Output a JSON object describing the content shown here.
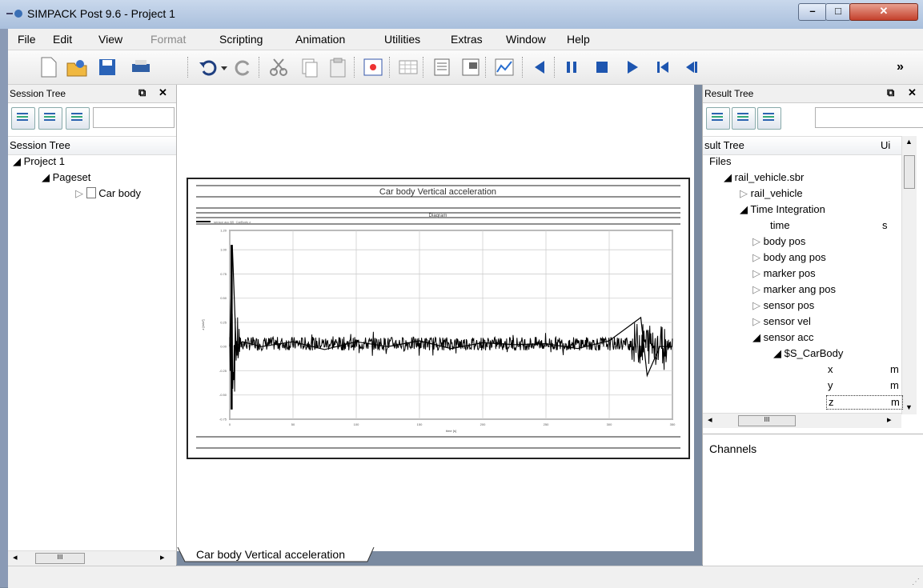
{
  "window": {
    "title": "SIMPACK Post 9.6 - Project 1"
  },
  "menu": [
    "File",
    "Edit",
    "View",
    "Format",
    "Scripting",
    "Animation",
    "Utilities",
    "Extras",
    "Window",
    "Help"
  ],
  "toolbar": {
    "icons": [
      "new-document-icon",
      "open-folder-icon",
      "save-icon",
      "print-icon",
      "undo-icon",
      "undo-dropdown-icon",
      "redo-icon",
      "cut-icon",
      "copy-icon",
      "paste-icon",
      "fit-view-icon",
      "table-icon",
      "report-icon",
      "page-layout-icon",
      "diagram-icon",
      "step-back-icon",
      "pause-icon",
      "stop-icon",
      "play-icon",
      "go-first-icon",
      "previous-frame-icon"
    ],
    "overflow": "»"
  },
  "session_tree": {
    "panel_title": "Session Tree",
    "column_title": "Session Tree",
    "nodes": [
      "Project 1",
      "Pageset",
      "Car body"
    ],
    "scroll_glyph": "III"
  },
  "result_tree": {
    "panel_title": "Result Tree",
    "column_title": "sult Tree",
    "column_unit": "Ui",
    "nodes": [
      "Files",
      "rail_vehicle.sbr",
      "rail_vehicle",
      "Time Integration",
      "time",
      "body pos",
      "body ang pos",
      "marker pos",
      "marker ang pos",
      "sensor pos",
      "sensor vel",
      "sensor acc",
      "$S_CarBody",
      "x",
      "y",
      "z"
    ],
    "units": {
      "time": "s",
      "x": "m",
      "y": "m",
      "z": "m"
    },
    "scroll_glyph": "III"
  },
  "channels": {
    "title": "Channels"
  },
  "tab": {
    "label": "Car body Vertical acceleration"
  },
  "plot": {
    "title": "Car body Vertical acceleration",
    "subtitle": "Diagram",
    "legend": "sensor acc $S_CarBody z",
    "xlabel": "time [s]",
    "ylabel": "z [m/s²]",
    "xticks": [
      "0",
      "50",
      "100",
      "150",
      "200",
      "250",
      "300",
      "350"
    ],
    "yticks": [
      "1.20",
      "1.00",
      "0.75",
      "0.50",
      "0.25",
      "0.00",
      "-0.25",
      "-0.50",
      "-0.75"
    ]
  },
  "chart_data": {
    "type": "line",
    "title": "Car body Vertical acceleration",
    "xlabel": "time [s]",
    "ylabel": "z [m/s²]",
    "xlim": [
      0,
      350
    ],
    "ylim": [
      -0.75,
      1.2
    ],
    "grid": true,
    "series": [
      {
        "name": "sensor acc $S_CarBody z",
        "x": [
          0,
          2,
          5,
          10,
          25,
          50,
          75,
          100,
          125,
          150,
          175,
          200,
          225,
          250,
          275,
          300,
          325,
          330,
          340,
          350
        ],
        "y": [
          0.0,
          1.05,
          0.0,
          0.05,
          0.0,
          0.05,
          -0.03,
          0.05,
          0.0,
          0.06,
          -0.02,
          0.04,
          0.02,
          0.03,
          -0.02,
          0.06,
          0.3,
          -0.3,
          0.0,
          0.0
        ]
      }
    ]
  }
}
